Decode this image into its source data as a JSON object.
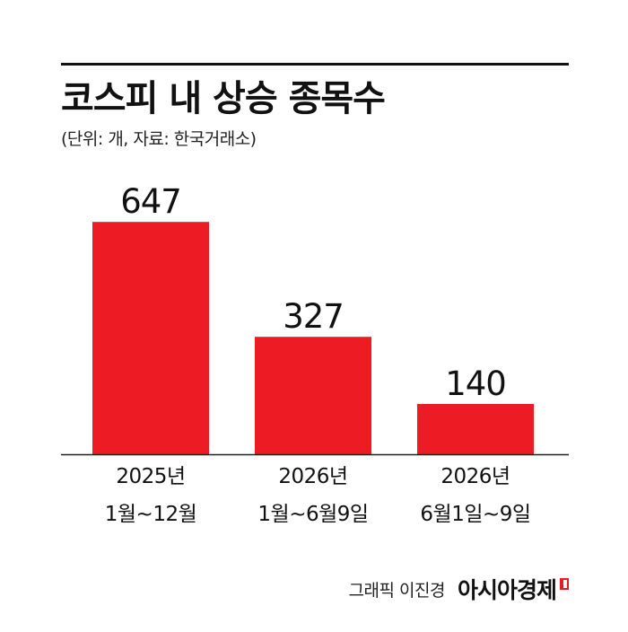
{
  "header": {
    "title": "코스피 내 상승 종목수",
    "subtitle": "(단위: 개, 자료: 한국거래소)"
  },
  "footer": {
    "credit": "그래픽 이진경",
    "brand": "아시아경제",
    "brand_mark_icon": "red-corner-mark-icon"
  },
  "colors": {
    "bar": "#ed1c24",
    "text": "#111111",
    "axis": "#222222",
    "accent": "#e31e24"
  },
  "chart_data": {
    "type": "bar",
    "categories": [
      [
        "2025년",
        "1월~12월"
      ],
      [
        "2026년",
        "1월~6월9일"
      ],
      [
        "2026년",
        "6월1일~9일"
      ]
    ],
    "values": [
      647,
      327,
      140
    ],
    "data_labels": [
      "647",
      "327",
      "140"
    ],
    "ylim": [
      0,
      720
    ],
    "grid": false,
    "legend": "none"
  }
}
